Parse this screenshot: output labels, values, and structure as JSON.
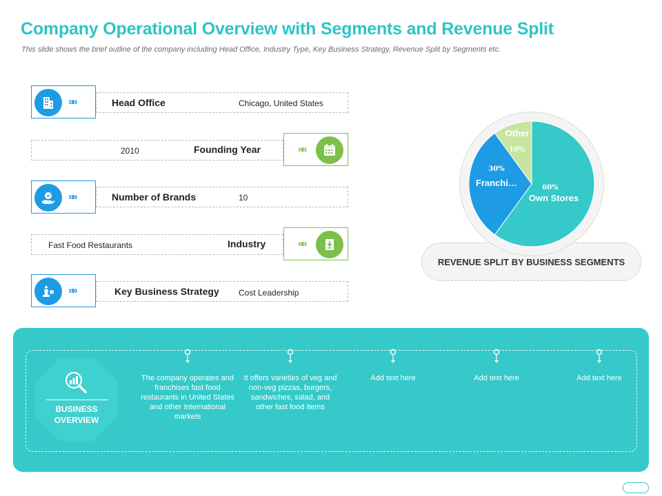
{
  "header": {
    "title": "Company Operational Overview with Segments and Revenue Split",
    "subtitle": "This slide shows the brief outline of the company including Head Office, Industry Type, Key Business Strategy, Revenue Split by Segments etc."
  },
  "rows": [
    {
      "label": "Head Office",
      "value": "Chicago, United States",
      "icon": "building-icon"
    },
    {
      "label": "Founding Year",
      "value": "2010",
      "icon": "calendar-icon"
    },
    {
      "label": "Number of Brands",
      "value": "10",
      "icon": "hand-badge-icon"
    },
    {
      "label": "Industry",
      "value": "Fast Food Restaurants",
      "icon": "document-icon"
    },
    {
      "label": "Key Business Strategy",
      "value": "Cost Leadership",
      "icon": "chess-king-icon"
    }
  ],
  "chevrons": {
    "right": "»»",
    "left": "««"
  },
  "chart_data": {
    "type": "pie",
    "title": "REVENUE SPLIT BY BUSINESS SEGMENTS",
    "slices": [
      {
        "name": "Own Stores",
        "value": 60,
        "label": "60%",
        "color": "#35c9c9"
      },
      {
        "name": "Franchi…",
        "value": 30,
        "label": "30%",
        "color": "#1e9be5"
      },
      {
        "name": "Other",
        "value": 10,
        "label": "10%",
        "color": "#c5e5a0"
      }
    ]
  },
  "overview": {
    "heading_line1": "BUSINESS",
    "heading_line2": "OVERVIEW",
    "icon": "magnifier-chart-icon",
    "columns": [
      "The company operates and franchises fast food restaurants in United States and other International markets",
      "It offers varieties of veg and non-veg pizzas, burgers, sandwiches, salad, and other fast food items",
      "Add text here",
      "Add text here",
      "Add text here"
    ]
  },
  "colors": {
    "accent": "#2ec4c4",
    "blue": "#1e9be5",
    "green": "#7cc04a",
    "panel": "#35c9c9"
  }
}
